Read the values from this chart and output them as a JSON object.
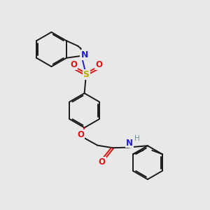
{
  "bg_color": "#e8e8e8",
  "bond_color": "#1a1a1a",
  "N_color": "#2020cc",
  "O_color": "#dd1111",
  "S_color": "#bbaa00",
  "H_color": "#7090a0",
  "lw": 1.4,
  "fig_size": [
    3.0,
    3.0
  ],
  "dpi": 100,
  "xlim": [
    0,
    10
  ],
  "ylim": [
    0,
    10
  ]
}
